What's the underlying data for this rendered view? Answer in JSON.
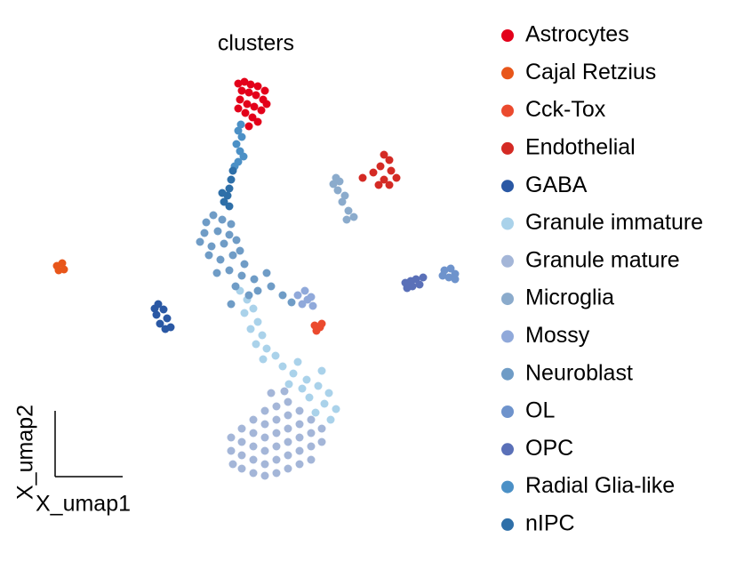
{
  "chart_data": {
    "type": "scatter",
    "title": "clusters",
    "xlabel": "X_umap1",
    "ylabel": "X_umap2",
    "xlim": [
      40,
      520
    ],
    "ylim": [
      70,
      560
    ],
    "series": [
      {
        "name": "Astrocytes",
        "color": "#e3001a",
        "x": [
          268,
          275,
          282,
          290,
          298,
          272,
          280,
          288,
          296,
          300,
          270,
          278,
          286,
          294,
          284,
          290,
          276,
          268,
          280
        ],
        "values": [
          538,
          540,
          537,
          535,
          530,
          530,
          528,
          525,
          520,
          515,
          520,
          515,
          512,
          508,
          500,
          495,
          505,
          510,
          490
        ]
      },
      {
        "name": "Cajal Retzius",
        "color": "#e8561a",
        "x": [
          64,
          70,
          72,
          66
        ],
        "values": [
          333,
          336,
          329,
          328
        ]
      },
      {
        "name": "Cck-Tox",
        "color": "#eb4a2e",
        "x": [
          354,
          360,
          356,
          362
        ],
        "values": [
          266,
          264,
          260,
          268
        ]
      },
      {
        "name": "Endothelial",
        "color": "#d42a24",
        "x": [
          432,
          438,
          428,
          440,
          446,
          432,
          420,
          438,
          426,
          408
        ],
        "values": [
          458,
          452,
          445,
          440,
          432,
          430,
          438,
          424,
          424,
          432
        ]
      },
      {
        "name": "GABA",
        "color": "#2a58a4",
        "x": [
          178,
          184,
          176,
          188,
          180,
          192,
          186,
          174
        ],
        "values": [
          290,
          284,
          278,
          274,
          268,
          264,
          262,
          285
        ]
      },
      {
        "name": "Granule immature",
        "color": "#aad2ea",
        "x": [
          270,
          278,
          285,
          275,
          290,
          282,
          295,
          288,
          300,
          310,
          296,
          318,
          330,
          345,
          358,
          340,
          370,
          365,
          378,
          355,
          372,
          348,
          325,
          335,
          362
        ],
        "values": [
          305,
          295,
          285,
          280,
          270,
          262,
          255,
          245,
          240,
          232,
          228,
          220,
          212,
          205,
          198,
          195,
          190,
          178,
          172,
          168,
          160,
          185,
          200,
          225,
          215
        ]
      },
      {
        "name": "Granule mature",
        "color": "#a4b6d8",
        "x": [
          260,
          260,
          262,
          272,
          272,
          272,
          272,
          285,
          285,
          285,
          285,
          285,
          298,
          298,
          298,
          298,
          298,
          298,
          311,
          311,
          311,
          311,
          311,
          311,
          324,
          324,
          324,
          324,
          324,
          324,
          337,
          337,
          337,
          337,
          337,
          350,
          350,
          350,
          350,
          362,
          362,
          305,
          320
        ],
        "values": [
          140,
          125,
          110,
          150,
          135,
          120,
          105,
          160,
          145,
          130,
          115,
          100,
          170,
          155,
          140,
          125,
          110,
          97,
          175,
          160,
          145,
          130,
          115,
          100,
          180,
          165,
          150,
          135,
          120,
          105,
          170,
          155,
          140,
          125,
          110,
          160,
          145,
          130,
          115,
          150,
          135,
          190,
          192
        ]
      },
      {
        "name": "Microglia",
        "color": "#8babcc",
        "x": [
          375,
          382,
          380,
          388,
          385,
          392,
          398,
          390,
          378
        ],
        "values": [
          425,
          428,
          418,
          412,
          405,
          395,
          388,
          385,
          432
        ]
      },
      {
        "name": "Mossy",
        "color": "#90a9da",
        "x": [
          335,
          343,
          350,
          340,
          352,
          346
        ],
        "values": [
          300,
          305,
          298,
          290,
          288,
          295
        ]
      },
      {
        "name": "Neuroblast",
        "color": "#6f9cc6",
        "x": [
          240,
          250,
          260,
          230,
          245,
          258,
          225,
          238,
          252,
          266,
          235,
          248,
          262,
          275,
          244,
          258,
          272,
          286,
          300,
          290,
          305,
          318,
          265,
          280,
          260,
          328,
          232,
          270
        ],
        "values": [
          390,
          385,
          380,
          370,
          372,
          368,
          360,
          355,
          358,
          362,
          345,
          340,
          345,
          335,
          325,
          328,
          322,
          318,
          325,
          305,
          310,
          300,
          310,
          300,
          290,
          292,
          382,
          350
        ]
      },
      {
        "name": "OL",
        "color": "#6e93cc",
        "x": [
          500,
          507,
          512,
          505,
          512,
          498
        ],
        "values": [
          328,
          330,
          324,
          320,
          318,
          322
        ]
      },
      {
        "name": "OPC",
        "color": "#5a70b8",
        "x": [
          456,
          462,
          468,
          472,
          464,
          458,
          476
        ],
        "values": [
          314,
          316,
          318,
          312,
          310,
          308,
          320
        ]
      },
      {
        "name": "Radial Glia-like",
        "color": "#4b90c6",
        "x": [
          268,
          272,
          266,
          270,
          274,
          268,
          264,
          271
        ],
        "values": [
          485,
          478,
          470,
          462,
          456,
          450,
          445,
          492
        ]
      },
      {
        "name": "nIPC",
        "color": "#2e6fa8",
        "x": [
          262,
          260,
          258,
          256,
          252,
          258,
          250
        ],
        "values": [
          440,
          430,
          420,
          412,
          405,
          400,
          415
        ]
      }
    ]
  }
}
